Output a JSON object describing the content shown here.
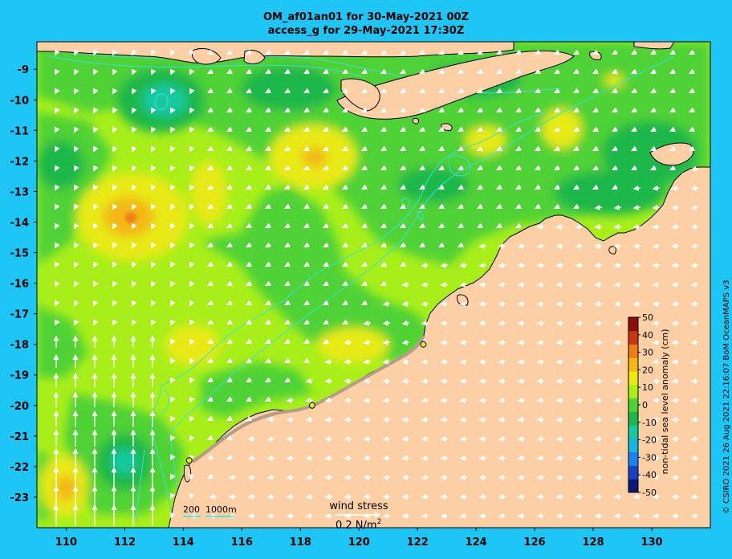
{
  "title_line1": "OM_af01an01 for 30-May-2021 00Z",
  "title_line2": "access_g for 29-May-2021 17:30Z",
  "y_ticks": [
    {
      "value": -9,
      "label": "-9"
    },
    {
      "value": -10,
      "label": "-10"
    },
    {
      "value": -11,
      "label": "-11"
    },
    {
      "value": -12,
      "label": "-12"
    },
    {
      "value": -13,
      "label": "-13"
    },
    {
      "value": -14,
      "label": "-14"
    },
    {
      "value": -15,
      "label": "-15"
    },
    {
      "value": -16,
      "label": "-16"
    },
    {
      "value": -17,
      "label": "-17"
    },
    {
      "value": -18,
      "label": "-18"
    },
    {
      "value": -19,
      "label": "-19"
    },
    {
      "value": -20,
      "label": "-20"
    },
    {
      "value": -21,
      "label": "-21"
    },
    {
      "value": -22,
      "label": "-22"
    },
    {
      "value": -23,
      "label": "-23"
    }
  ],
  "x_ticks": [
    {
      "value": 110,
      "label": "110"
    },
    {
      "value": 112,
      "label": "112"
    },
    {
      "value": 114,
      "label": "114"
    },
    {
      "value": 116,
      "label": "116"
    },
    {
      "value": 118,
      "label": "118"
    },
    {
      "value": 120,
      "label": "120"
    },
    {
      "value": 122,
      "label": "122"
    },
    {
      "value": 124,
      "label": "124"
    },
    {
      "value": 126,
      "label": "126"
    },
    {
      "value": 128,
      "label": "128"
    },
    {
      "value": 130,
      "label": "130"
    }
  ],
  "colorbar": {
    "title": "non-tidal sea level anomaly (cm)",
    "ticks": [
      {
        "value": 50,
        "label": "50"
      },
      {
        "value": 40,
        "label": "40"
      },
      {
        "value": 30,
        "label": "30"
      },
      {
        "value": 20,
        "label": "20"
      },
      {
        "value": 10,
        "label": "10"
      },
      {
        "value": 0,
        "label": "0"
      },
      {
        "value": -10,
        "label": "-10"
      },
      {
        "value": -20,
        "label": "-20"
      },
      {
        "value": -30,
        "label": "-30"
      },
      {
        "value": -40,
        "label": "-40"
      },
      {
        "value": -50,
        "label": "-50"
      }
    ],
    "colors": [
      "#0b1a7a",
      "#1840c8",
      "#1e7ff0",
      "#15b6e0",
      "#16c9a0",
      "#1cb84a",
      "#4fd234",
      "#a8ef1a",
      "#e8ea14",
      "#f3b816",
      "#ef7d15",
      "#c9360f",
      "#8e0c05"
    ]
  },
  "wind_legend": {
    "label": "wind stress",
    "value": "0.2 N/m",
    "sup": "2"
  },
  "depth_legend": {
    "label1": "200",
    "label2": "1000m"
  },
  "credit": "© CSIRO 2021  26 Aug 2021 22:16:07 BoM OceanMAPS v3",
  "colors": {
    "background": "#1ec6f5",
    "land": "#fcd0a4",
    "sea_base": "#a8ef1a",
    "contour": "#33e3d8"
  },
  "station_markers": [
    {
      "lon": 114.2,
      "lat": -21.8
    },
    {
      "lon": 118.4,
      "lat": -20.0
    },
    {
      "lon": 122.2,
      "lat": -18.0
    }
  ]
}
